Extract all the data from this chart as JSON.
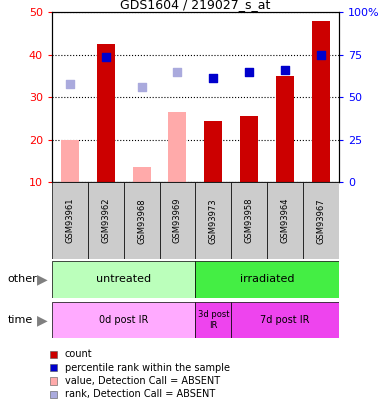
{
  "title": "GDS1604 / 219027_s_at",
  "samples": [
    "GSM93961",
    "GSM93962",
    "GSM93968",
    "GSM93969",
    "GSM93973",
    "GSM93958",
    "GSM93964",
    "GSM93967"
  ],
  "count_values": [
    null,
    42.5,
    null,
    null,
    24.5,
    25.5,
    35.0,
    48.0
  ],
  "count_absent": [
    20.0,
    null,
    13.5,
    26.5,
    null,
    null,
    null,
    null
  ],
  "rank_present": [
    null,
    39.5,
    null,
    null,
    34.5,
    36.0,
    36.5,
    40.0
  ],
  "rank_absent": [
    33.0,
    null,
    32.5,
    36.0,
    null,
    null,
    null,
    null
  ],
  "ylim_left": [
    10,
    50
  ],
  "yticks_left": [
    10,
    20,
    30,
    40,
    50
  ],
  "yticks_right": [
    0,
    25,
    50,
    75,
    100
  ],
  "yticklabels_right": [
    "0",
    "25",
    "50",
    "75",
    "100%"
  ],
  "color_red": "#cc0000",
  "color_pink": "#ffaaaa",
  "color_blue": "#0000cc",
  "color_blue_light": "#aaaadd",
  "group_other": [
    {
      "label": "untreated",
      "start": 0,
      "end": 4,
      "color": "#bbffbb"
    },
    {
      "label": "irradiated",
      "start": 4,
      "end": 8,
      "color": "#44ee44"
    }
  ],
  "group_time": [
    {
      "label": "0d post IR",
      "start": 0,
      "end": 4,
      "color": "#ffaaff"
    },
    {
      "label": "3d post\nIR",
      "start": 4,
      "end": 5,
      "color": "#ee44ee"
    },
    {
      "label": "7d post IR",
      "start": 5,
      "end": 8,
      "color": "#ee44ee"
    }
  ],
  "legend_items": [
    {
      "label": "count",
      "color": "#cc0000"
    },
    {
      "label": "percentile rank within the sample",
      "color": "#0000cc"
    },
    {
      "label": "value, Detection Call = ABSENT",
      "color": "#ffaaaa"
    },
    {
      "label": "rank, Detection Call = ABSENT",
      "color": "#aaaadd"
    }
  ],
  "bar_width": 0.5,
  "dot_size": 40
}
